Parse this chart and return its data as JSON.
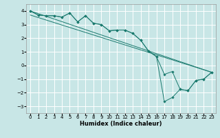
{
  "xlabel": "Humidex (Indice chaleur)",
  "background_color": "#c8e6e6",
  "grid_color": "#ffffff",
  "line_color": "#1a7a6e",
  "xlim": [
    -0.5,
    23.5
  ],
  "ylim": [
    -3.5,
    4.5
  ],
  "xticks": [
    0,
    1,
    2,
    3,
    4,
    5,
    6,
    7,
    8,
    9,
    10,
    11,
    12,
    13,
    14,
    15,
    16,
    17,
    18,
    19,
    20,
    21,
    22,
    23
  ],
  "yticks": [
    -3,
    -2,
    -1,
    0,
    1,
    2,
    3,
    4
  ],
  "line1_x": [
    0,
    1,
    2,
    3,
    4,
    5,
    6,
    7,
    8,
    9,
    10,
    11,
    12,
    13,
    14,
    15,
    16,
    17,
    18,
    19,
    20,
    21,
    22,
    23
  ],
  "line1_y": [
    4.0,
    3.7,
    3.65,
    3.65,
    3.55,
    3.85,
    3.2,
    3.65,
    3.1,
    3.0,
    2.55,
    2.6,
    2.6,
    2.35,
    1.85,
    1.05,
    0.65,
    -0.65,
    -0.45,
    -1.75,
    -1.85,
    -1.1,
    -1.0,
    -0.5
  ],
  "line2_x": [
    0,
    1,
    2,
    3,
    4,
    5,
    6,
    7,
    8,
    9,
    10,
    11,
    12,
    13,
    14,
    15,
    16,
    17,
    18,
    19,
    20,
    21,
    22,
    23
  ],
  "line2_y": [
    4.0,
    3.7,
    3.65,
    3.65,
    3.55,
    3.85,
    3.2,
    3.65,
    3.1,
    3.0,
    2.55,
    2.6,
    2.6,
    2.35,
    1.85,
    1.05,
    0.65,
    -2.65,
    -2.35,
    -1.75,
    -1.85,
    -1.1,
    -1.0,
    -0.5
  ],
  "line3_x": [
    0,
    23
  ],
  "line3_y": [
    4.0,
    -0.5
  ],
  "line4_x": [
    0,
    23
  ],
  "line4_y": [
    3.7,
    -0.5
  ]
}
